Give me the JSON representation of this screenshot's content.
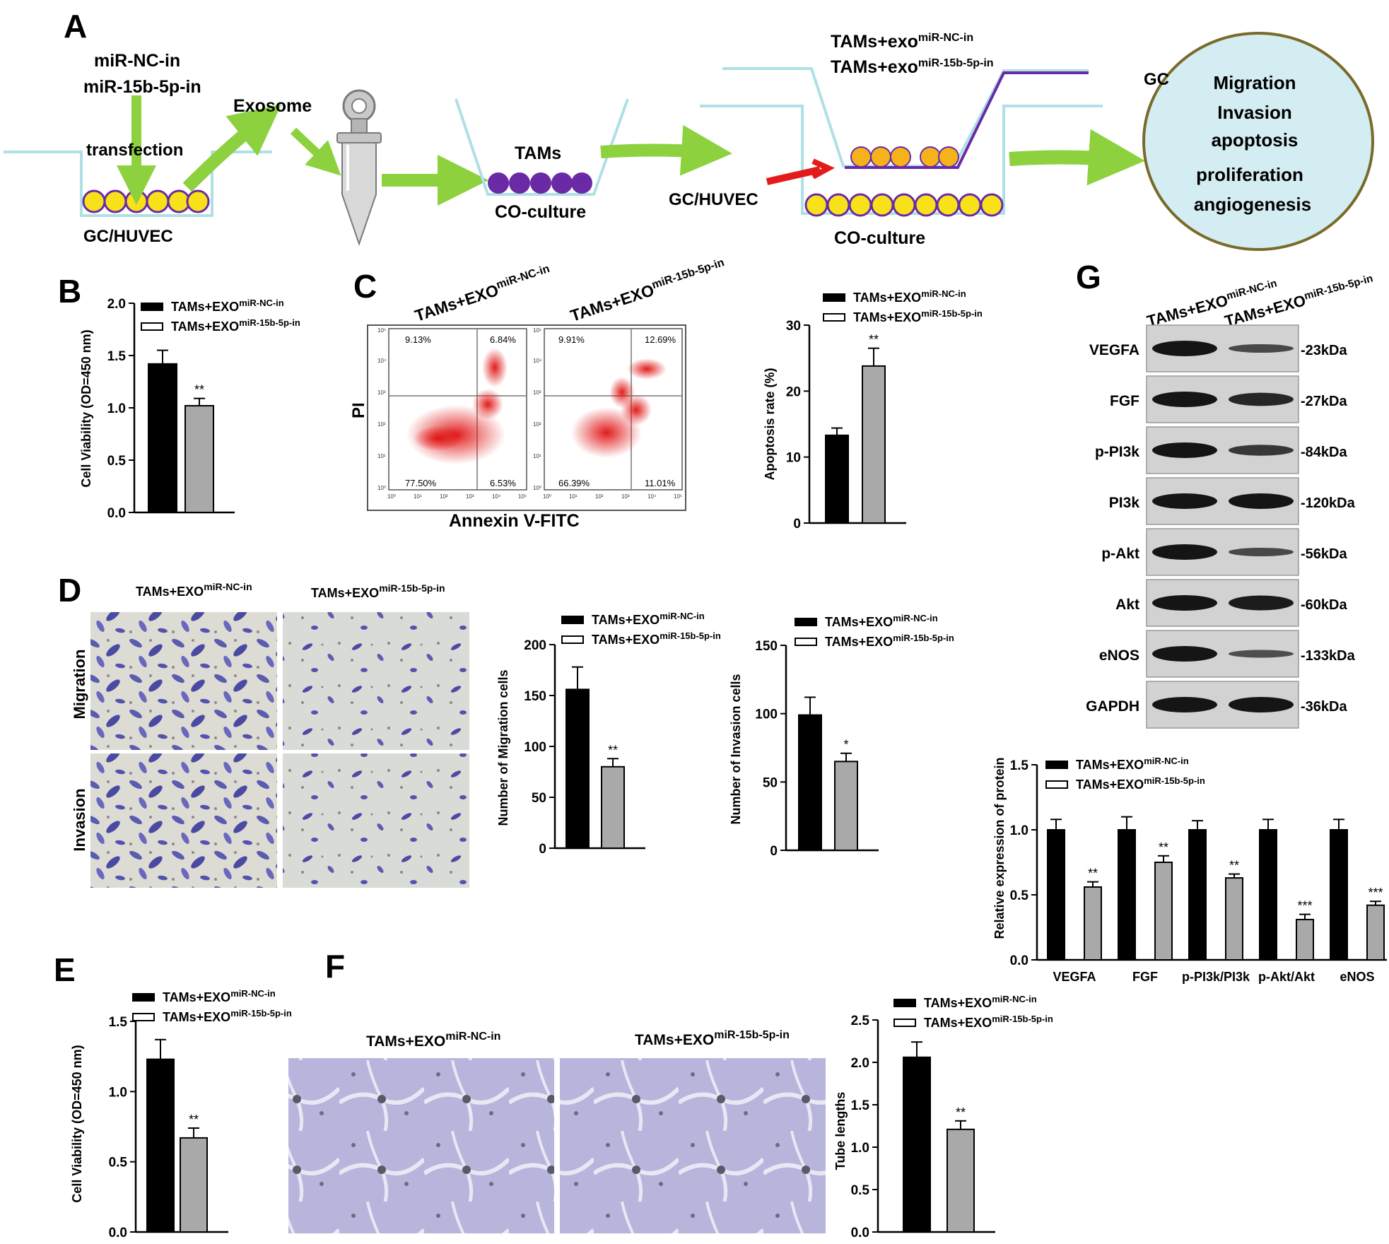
{
  "panels": {
    "A": "A",
    "B": "B",
    "C": "C",
    "D": "D",
    "E": "E",
    "F": "F",
    "G": "G"
  },
  "groups": {
    "nc": {
      "base": "TAMs+EXO",
      "sup": "miR-NC-in"
    },
    "p15": {
      "base": "TAMs+EXO",
      "sup": "miR-15b-5p-in"
    }
  },
  "schematic": {
    "mir_nc": "miR-NC-in",
    "mir_15b": "miR-15b-5p-in",
    "transfection": "transfection",
    "gc_huvec": "GC/HUVEC",
    "exosome": "Exosome",
    "tams": "TAMs",
    "coculture_1": "CO-culture",
    "exo_nc_base": "TAMs+exo",
    "exo_nc_sup": "miR-NC-in",
    "exo_15b_base": "TAMs+exo",
    "exo_15b_sup": "miR-15b-5p-in",
    "gc_huvec_2": "GC/HUVEC",
    "coculture_2": "CO-culture",
    "gc": "GC",
    "outcomes": [
      "Migration",
      "Invasion",
      "apoptosis",
      "proliferation",
      "angiogenesis"
    ],
    "colors": {
      "dish": "#aee0e6",
      "cell_yellow": "#f7e21a",
      "cell_orange": "#f6b21b",
      "cell_purple": "#6a2aa6",
      "arrow_green": "#8dd13f",
      "arrow_red": "#e31b1b",
      "circle_fill": "#d4edf2"
    }
  },
  "flow": {
    "quadrants_nc": [
      "9.13%",
      "6.84%",
      "77.50%",
      "6.53%"
    ],
    "quadrants_15b": [
      "9.91%",
      "12.69%",
      "66.39%",
      "11.01%"
    ],
    "xlabel": "Annexin V-FITC",
    "ylabel": "PI",
    "axis_ticks": [
      "10⁰",
      "10¹",
      "10²",
      "10³",
      "10⁴",
      "10⁵"
    ]
  },
  "micrographs": {
    "row_migration": "Migration",
    "row_invasion": "Invasion"
  },
  "western": {
    "bands": [
      {
        "protein": "VEGFA",
        "size": "-23kDa",
        "nc": 1.0,
        "p15": 0.55
      },
      {
        "protein": "FGF",
        "size": "-27kDa",
        "nc": 1.0,
        "p15": 0.85
      },
      {
        "protein": "p-PI3k",
        "size": "-84kDa",
        "nc": 1.0,
        "p15": 0.7
      },
      {
        "protein": "PI3k",
        "size": "-120kDa",
        "nc": 1.0,
        "p15": 1.0
      },
      {
        "protein": "p-Akt",
        "size": "-56kDa",
        "nc": 1.0,
        "p15": 0.55
      },
      {
        "protein": "Akt",
        "size": "-60kDa",
        "nc": 1.0,
        "p15": 0.95
      },
      {
        "protein": "eNOS",
        "size": "-133kDa",
        "nc": 1.0,
        "p15": 0.5
      },
      {
        "protein": "GAPDH",
        "size": "-36kDa",
        "nc": 1.0,
        "p15": 1.0
      }
    ]
  },
  "chart_data": [
    {
      "id": "B",
      "type": "bar",
      "ylabel": "Cell Viability (OD=450 nm)",
      "ylim": [
        0,
        2.0
      ],
      "yticks": [
        "0.0",
        "0.5",
        "1.0",
        "1.5",
        "2.0"
      ],
      "series": [
        {
          "name": "TAMs+EXO miR-NC-in",
          "value": 1.42,
          "error": 0.13,
          "color": "#000000"
        },
        {
          "name": "TAMs+EXO miR-15b-5p-in",
          "value": 1.02,
          "error": 0.07,
          "color": "#a9a9a9",
          "sig": "**"
        }
      ]
    },
    {
      "id": "C",
      "type": "bar",
      "ylabel": "Apoptosis rate (%)",
      "ylim": [
        0,
        30
      ],
      "yticks": [
        "0",
        "10",
        "20",
        "30"
      ],
      "series": [
        {
          "name": "TAMs+EXO miR-NC-in",
          "value": 13.3,
          "error": 1.1,
          "color": "#000000"
        },
        {
          "name": "TAMs+EXO miR-15b-5p-in",
          "value": 23.8,
          "error": 2.7,
          "color": "#a9a9a9",
          "sig": "**"
        }
      ]
    },
    {
      "id": "D-migration",
      "type": "bar",
      "ylabel": "Number of Migration cells",
      "ylim": [
        0,
        200
      ],
      "yticks": [
        "0",
        "50",
        "100",
        "150",
        "200"
      ],
      "series": [
        {
          "name": "TAMs+EXO miR-NC-in",
          "value": 156,
          "error": 22,
          "color": "#000000"
        },
        {
          "name": "TAMs+EXO miR-15b-5p-in",
          "value": 80,
          "error": 8,
          "color": "#a9a9a9",
          "sig": "**"
        }
      ]
    },
    {
      "id": "D-invasion",
      "type": "bar",
      "ylabel": "Number of Invasion cells",
      "ylim": [
        0,
        150
      ],
      "yticks": [
        "0",
        "50",
        "100",
        "150"
      ],
      "series": [
        {
          "name": "TAMs+EXO miR-NC-in",
          "value": 99,
          "error": 13,
          "color": "#000000"
        },
        {
          "name": "TAMs+EXO miR-15b-5p-in",
          "value": 65,
          "error": 6,
          "color": "#a9a9a9",
          "sig": "*"
        }
      ]
    },
    {
      "id": "E",
      "type": "bar",
      "ylabel": "Cell Viability (OD=450 nm)",
      "ylim": [
        0,
        1.5
      ],
      "yticks": [
        "0.0",
        "0.5",
        "1.0",
        "1.5"
      ],
      "series": [
        {
          "name": "TAMs+EXO miR-NC-in",
          "value": 1.23,
          "error": 0.14,
          "color": "#000000"
        },
        {
          "name": "TAMs+EXO miR-15b-5p-in",
          "value": 0.67,
          "error": 0.07,
          "color": "#a9a9a9",
          "sig": "**"
        }
      ]
    },
    {
      "id": "F",
      "type": "bar",
      "ylabel": "Tube lengths",
      "ylim": [
        0,
        2.5
      ],
      "yticks": [
        "0.0",
        "0.5",
        "1.0",
        "1.5",
        "2.0",
        "2.5"
      ],
      "series": [
        {
          "name": "TAMs+EXO miR-NC-in",
          "value": 2.06,
          "error": 0.18,
          "color": "#000000"
        },
        {
          "name": "TAMs+EXO miR-15b-5p-in",
          "value": 1.21,
          "error": 0.1,
          "color": "#a9a9a9",
          "sig": "**"
        }
      ]
    },
    {
      "id": "G-quant",
      "type": "bar",
      "ylabel": "Relative expression of protein",
      "ylim": [
        0,
        1.5
      ],
      "yticks": [
        "0.0",
        "0.5",
        "1.0",
        "1.5"
      ],
      "categories": [
        "VEGFA",
        "FGF",
        "p-PI3k/PI3k",
        "p-Akt/Akt",
        "eNOS"
      ],
      "series": [
        {
          "name": "TAMs+EXO miR-NC-in",
          "values": [
            1.0,
            1.0,
            1.0,
            1.0,
            1.0
          ],
          "errors": [
            0.08,
            0.1,
            0.07,
            0.08,
            0.08
          ],
          "color": "#000000"
        },
        {
          "name": "TAMs+EXO miR-15b-5p-in",
          "values": [
            0.56,
            0.75,
            0.63,
            0.31,
            0.42
          ],
          "errors": [
            0.04,
            0.05,
            0.03,
            0.04,
            0.03
          ],
          "color": "#a9a9a9",
          "sig": [
            "**",
            "**",
            "**",
            "***",
            "***"
          ]
        }
      ]
    }
  ]
}
